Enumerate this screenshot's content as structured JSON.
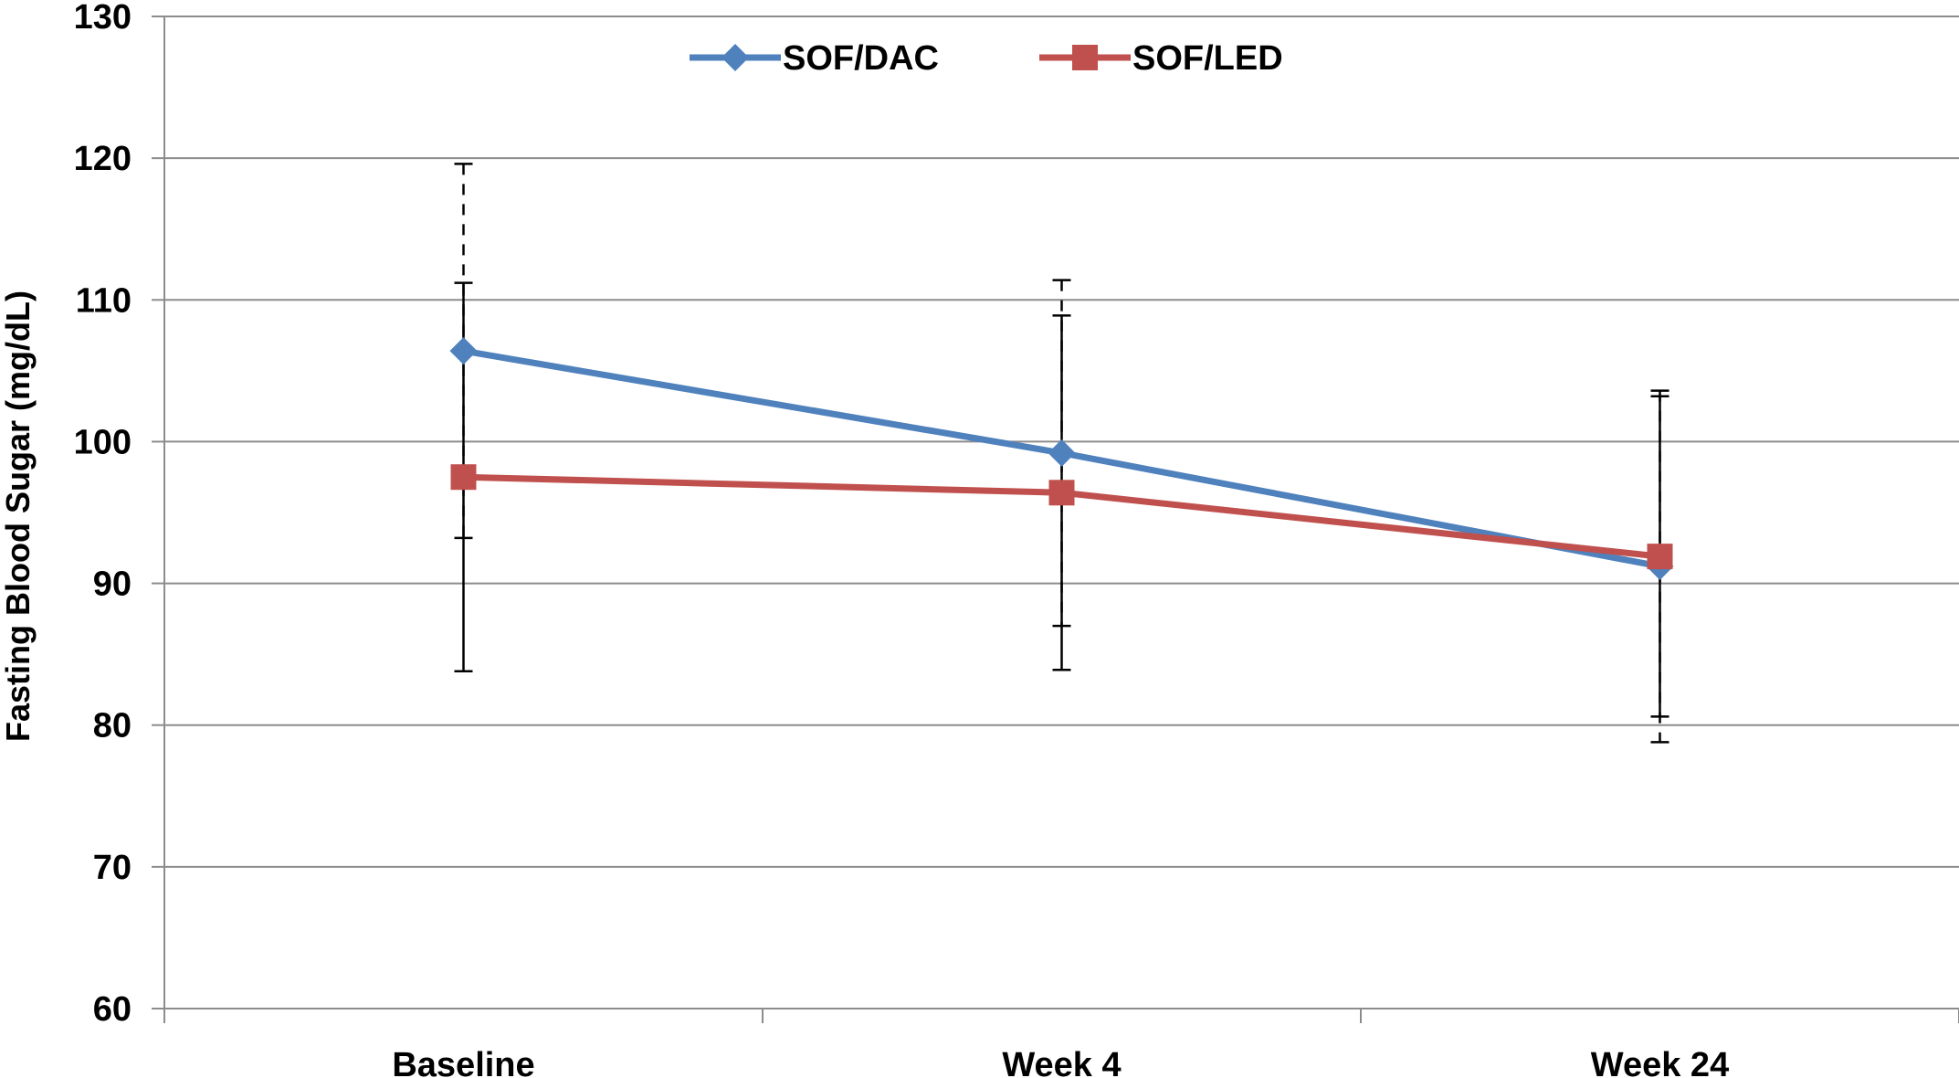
{
  "chart_data": {
    "type": "line",
    "categories": [
      "Baseline",
      "Week 4",
      "Week 24"
    ],
    "ylabel": "Fasting Blood Sugar (mg/dL)",
    "ylim": [
      60,
      130
    ],
    "yticks": [
      "60",
      "70",
      "80",
      "90",
      "100",
      "110",
      "120",
      "130"
    ],
    "grid": true,
    "legend_position": "top-center",
    "error_bars": true,
    "series": [
      {
        "name": "SOF/DAC",
        "color": "#4F81BD",
        "marker": "diamond",
        "values": [
          106.4,
          99.2,
          91.2
        ],
        "error_upper": [
          119.6,
          111.4,
          103.6
        ],
        "error_lower": [
          93.2,
          87.0,
          78.8
        ]
      },
      {
        "name": "SOF/LED",
        "color": "#C0504D",
        "marker": "square",
        "values": [
          97.5,
          96.4,
          91.9
        ],
        "error_upper": [
          111.2,
          108.9,
          103.2
        ],
        "error_lower": [
          83.8,
          83.9,
          80.6
        ]
      }
    ]
  }
}
